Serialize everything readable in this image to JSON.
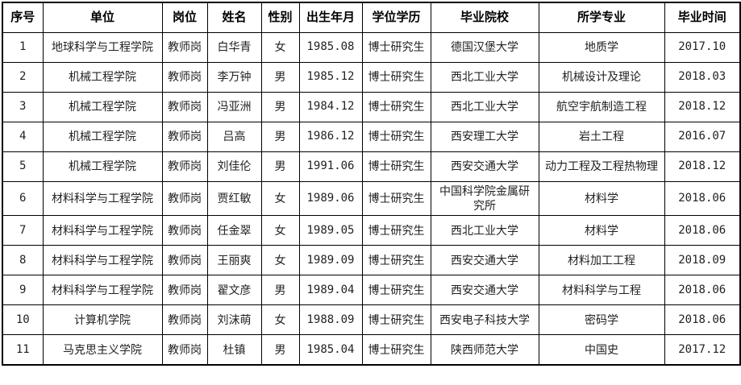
{
  "table": {
    "headers": [
      "序号",
      "单位",
      "岗位",
      "姓名",
      "性别",
      "出生年月",
      "学位学历",
      "毕业院校",
      "所学专业",
      "毕业时间"
    ],
    "rows": [
      [
        "1",
        "地球科学与工程学院",
        "教师岗",
        "白华青",
        "女",
        "1985.08",
        "博士研究生",
        "德国汉堡大学",
        "地质学",
        "2017.10"
      ],
      [
        "2",
        "机械工程学院",
        "教师岗",
        "李万钟",
        "男",
        "1985.12",
        "博士研究生",
        "西北工业大学",
        "机械设计及理论",
        "2018.03"
      ],
      [
        "3",
        "机械工程学院",
        "教师岗",
        "冯亚洲",
        "男",
        "1984.12",
        "博士研究生",
        "西北工业大学",
        "航空宇航制造工程",
        "2018.12"
      ],
      [
        "4",
        "机械工程学院",
        "教师岗",
        "吕高",
        "男",
        "1986.12",
        "博士研究生",
        "西安理工大学",
        "岩土工程",
        "2016.07"
      ],
      [
        "5",
        "机械工程学院",
        "教师岗",
        "刘佳伦",
        "男",
        "1991.06",
        "博士研究生",
        "西安交通大学",
        "动力工程及工程热物理",
        "2018.12"
      ],
      [
        "6",
        "材料科学与工程学院",
        "教师岗",
        "贾红敏",
        "女",
        "1989.06",
        "博士研究生",
        "中国科学院金属研究所",
        "材料学",
        "2018.06"
      ],
      [
        "7",
        "材料科学与工程学院",
        "教师岗",
        "任金翠",
        "女",
        "1989.05",
        "博士研究生",
        "西北工业大学",
        "材料学",
        "2018.06"
      ],
      [
        "8",
        "材料科学与工程学院",
        "教师岗",
        "王丽爽",
        "女",
        "1989.09",
        "博士研究生",
        "西安交通大学",
        "材料加工工程",
        "2018.09"
      ],
      [
        "9",
        "材料科学与工程学院",
        "教师岗",
        "翟文彦",
        "男",
        "1989.04",
        "博士研究生",
        "西安交通大学",
        "材料科学与工程",
        "2018.06"
      ],
      [
        "10",
        "计算机学院",
        "教师岗",
        "刘沫萌",
        "女",
        "1988.09",
        "博士研究生",
        "西安电子科技大学",
        "密码学",
        "2018.06"
      ],
      [
        "11",
        "马克思主义学院",
        "教师岗",
        "杜镇",
        "男",
        "1985.04",
        "博士研究生",
        "陕西师范大学",
        "中国史",
        "2017.12"
      ]
    ],
    "column_keys": [
      "no",
      "unit",
      "position",
      "name",
      "gender",
      "birth-date",
      "degree",
      "school",
      "major",
      "graduation-date"
    ],
    "numeric_columns": [
      0,
      5,
      9
    ]
  },
  "colors": {
    "border": "#000000",
    "header_text": "#000000",
    "body_text": "#222222",
    "numeric_text": "#757575",
    "background": "#ffffff"
  }
}
